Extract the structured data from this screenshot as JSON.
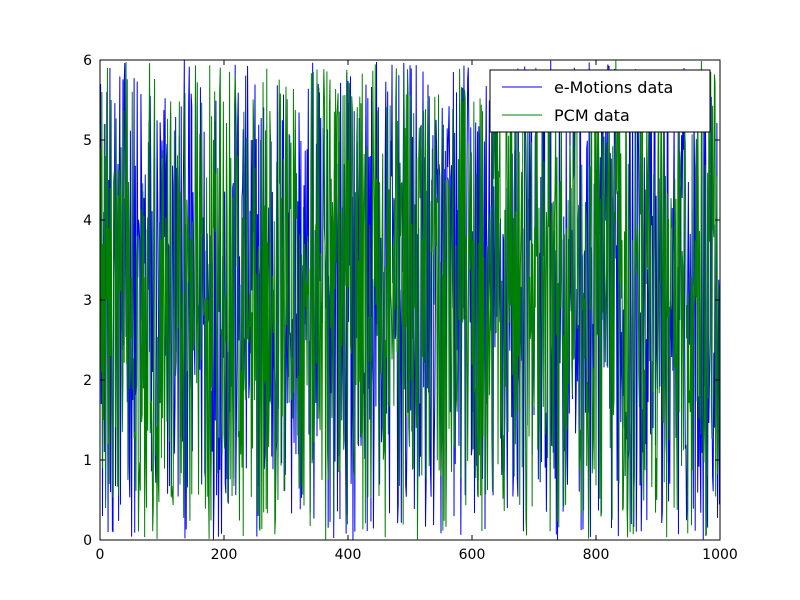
{
  "chart_data": {
    "type": "line",
    "title": "",
    "xlabel": "",
    "ylabel": "",
    "xlim": [
      0,
      1000
    ],
    "ylim": [
      0,
      6
    ],
    "x_ticks": [
      0,
      200,
      400,
      600,
      800,
      1000
    ],
    "y_ticks": [
      0,
      1,
      2,
      3,
      4,
      5,
      6
    ],
    "x_tick_labels": [
      "0",
      "200",
      "400",
      "600",
      "800",
      "1000"
    ],
    "y_tick_labels": [
      "0",
      "1",
      "2",
      "3",
      "4",
      "5",
      "6"
    ],
    "grid": false,
    "legend": {
      "placement": "top-right"
    },
    "series": [
      {
        "name": "e-Motions data",
        "color": "#0000ff",
        "description_values": "Dense noisy signal of 1000 samples (x = 0..999), values in the range 0–6",
        "n": 1000,
        "sample_values": [
          3.0,
          5.7,
          1.7,
          4.8,
          0.3,
          2.9,
          4.1,
          1.1,
          5.2,
          0.5,
          2.4,
          5.6,
          3.2,
          0.1,
          4.5,
          1.9,
          5.9,
          0.6,
          3.6,
          2.2
        ]
      },
      {
        "name": "PCM data",
        "color": "#008000",
        "description_values": "Dense noisy signal of 1000 samples (x = 0..999), values in the range 0–6",
        "n": 1000,
        "sample_values": [
          3.2,
          4.9,
          2.1,
          5.6,
          0.9,
          3.7,
          1.5,
          5.2,
          2.6,
          0.4,
          4.8,
          3.0,
          5.9,
          1.2,
          3.9,
          0.7,
          4.4,
          2.3,
          5.5,
          1.6
        ]
      }
    ]
  }
}
